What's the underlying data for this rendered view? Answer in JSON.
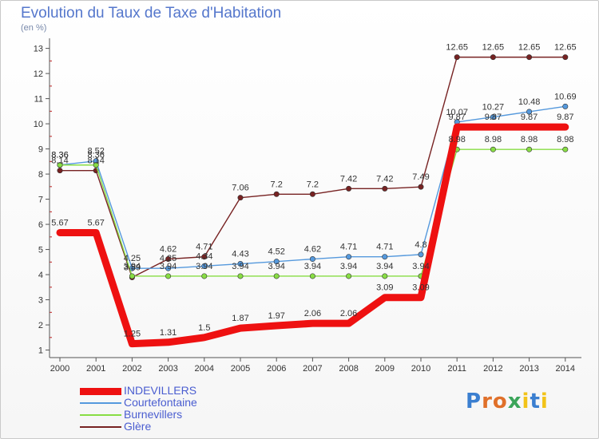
{
  "header": {
    "title": "Evolution du Taux de Taxe d'Habitation",
    "subtitle": "(en %)"
  },
  "logo": {
    "text": "Proxiti",
    "letter_colors": [
      "#3b7fd0",
      "#e0702a",
      "#e0702a",
      "#3ba55a",
      "#f2c319",
      "#3b7fd0",
      "#f2c319"
    ]
  },
  "chart_data": {
    "type": "line",
    "title": "Evolution du Taux de Taxe d'Habitation",
    "ylabel": "(en %)",
    "xlabel": "",
    "x": [
      "2000",
      "2001",
      "2002",
      "2003",
      "2004",
      "2005",
      "2006",
      "2007",
      "2008",
      "2009",
      "2010",
      "2011",
      "2012",
      "2013",
      "2014"
    ],
    "ylim": [
      1,
      13
    ],
    "yticks": [
      1,
      2,
      3,
      4,
      5,
      6,
      7,
      8,
      9,
      10,
      11,
      12,
      13
    ],
    "legend_position": "bottom-left",
    "series": [
      {
        "name": "INDEVILLERS",
        "color": "#ee1111",
        "values": [
          5.67,
          5.67,
          1.25,
          1.31,
          1.5,
          1.87,
          1.97,
          2.06,
          2.06,
          3.09,
          3.09,
          9.87,
          9.87,
          9.87,
          9.87
        ],
        "labels": [
          "5.67",
          "5.67",
          "1.25",
          "1.31",
          "1.5",
          "1.87",
          "1.97",
          "2.06",
          "2.06",
          "3.09",
          "3.09",
          "9.87",
          "9.87",
          "9.87",
          "9.87"
        ]
      },
      {
        "name": "Courtefontaine",
        "color": "#5599dd",
        "values": [
          8.36,
          8.52,
          4.25,
          4.25,
          4.34,
          4.43,
          4.52,
          4.62,
          4.71,
          4.71,
          4.8,
          10.07,
          10.27,
          10.48,
          10.69
        ],
        "labels": [
          "8.36",
          "8.52",
          "4.25",
          "4.25",
          "4.34",
          "4.43",
          "4.52",
          "4.62",
          "4.71",
          "4.71",
          "4.8",
          "10.07",
          "10.27",
          "10.48",
          "10.69"
        ]
      },
      {
        "name": "Burnevillers",
        "color": "#88dd44",
        "values": [
          8.36,
          8.36,
          3.94,
          3.94,
          3.94,
          3.94,
          3.94,
          3.94,
          3.94,
          3.94,
          3.94,
          8.98,
          8.98,
          8.98,
          8.98
        ],
        "labels": [
          "8.36",
          "8.36",
          "3.94",
          "3.94",
          "3.94",
          "3.94",
          "3.94",
          "3.94",
          "3.94",
          "3.94",
          "3.94",
          "8.98",
          "8.98",
          "8.98",
          "8.98"
        ]
      },
      {
        "name": "Glère",
        "color": "#772222",
        "values": [
          8.14,
          8.14,
          3.89,
          4.62,
          4.71,
          7.06,
          7.2,
          7.2,
          7.42,
          7.42,
          7.49,
          12.65,
          12.65,
          12.65,
          12.65
        ],
        "labels": [
          "8.14",
          "8.14",
          "3.89",
          "4.62",
          "4.71",
          "7.06",
          "7.2",
          "7.2",
          "7.42",
          "7.42",
          "7.49",
          "12.65",
          "12.65",
          "12.65",
          "12.65"
        ]
      }
    ]
  }
}
